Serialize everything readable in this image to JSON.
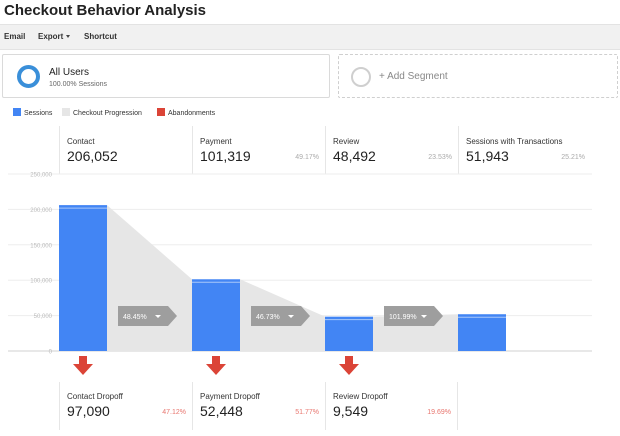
{
  "page": {
    "title": "Checkout Behavior Analysis"
  },
  "toolbar": {
    "email": "Email",
    "export": "Export",
    "shortcut": "Shortcut"
  },
  "segment": {
    "name": "All Users",
    "sub": "100.00% Sessions"
  },
  "add_segment": {
    "label": "+ Add Segment"
  },
  "legend": [
    {
      "label": "Sessions",
      "color": "#4285f4"
    },
    {
      "label": "Checkout Progression",
      "color": "#e6e6e6"
    },
    {
      "label": "Abandonments",
      "color": "#db4437"
    }
  ],
  "stages": [
    {
      "name": "Contact",
      "value": "206,052",
      "pct": ""
    },
    {
      "name": "Payment",
      "value": "101,319",
      "pct": "49.17%"
    },
    {
      "name": "Review",
      "value": "48,492",
      "pct": "23.53%"
    },
    {
      "name": "Sessions with Transactions",
      "value": "51,943",
      "pct": "25.21%"
    }
  ],
  "dropoffs": [
    {
      "name": "Contact Dropoff",
      "value": "97,090",
      "pct": "47.12%"
    },
    {
      "name": "Payment Dropoff",
      "value": "52,448",
      "pct": "51.77%"
    },
    {
      "name": "Review Dropoff",
      "value": "9,549",
      "pct": "19.69%"
    }
  ],
  "chart_data": {
    "type": "bar",
    "categories": [
      "Contact",
      "Payment",
      "Review",
      "Sessions with Transactions"
    ],
    "values": [
      206052,
      101319,
      48492,
      51943
    ],
    "ylim": [
      0,
      250000
    ],
    "yticks": [
      "250,000",
      "200,000",
      "150,000",
      "100,000",
      "50,000",
      "0"
    ],
    "progression_labels": [
      "48.45%",
      "46.73%",
      "101.99%"
    ],
    "colors": {
      "sessions": "#4285f4",
      "progression": "#e6e6e6",
      "abandonment": "#db4437",
      "arrow_box": "#9e9e9e"
    }
  }
}
